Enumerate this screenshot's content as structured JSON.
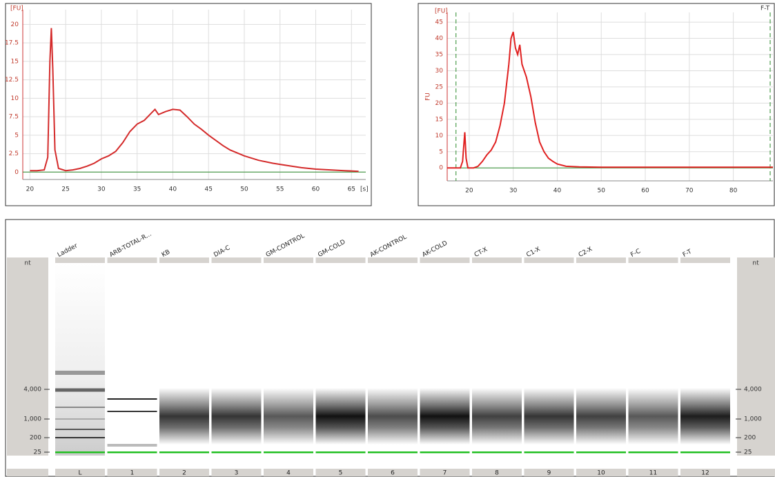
{
  "chart_data": [
    {
      "type": "line",
      "y_unit": "[FU]",
      "x_unit": "[s]",
      "color": "#d42a2a",
      "x": [
        20,
        21,
        22,
        22.5,
        22.8,
        23,
        23.2,
        23.5,
        24,
        25,
        26,
        27,
        28,
        29,
        30,
        31,
        32,
        33,
        34,
        35,
        36,
        37,
        37.5,
        38,
        39,
        40,
        41,
        42,
        43,
        44,
        45,
        46,
        47,
        48,
        50,
        52,
        54,
        56,
        58,
        60,
        62,
        64,
        66
      ],
      "values": [
        0.2,
        0.2,
        0.3,
        2,
        15,
        19.5,
        14,
        3,
        0.5,
        0.2,
        0.3,
        0.5,
        0.8,
        1.2,
        1.8,
        2.2,
        2.8,
        4,
        5.5,
        6.5,
        7,
        8,
        8.5,
        7.8,
        8.2,
        8.5,
        8.4,
        7.5,
        6.5,
        5.8,
        5,
        4.3,
        3.6,
        3,
        2.2,
        1.6,
        1.2,
        0.9,
        0.6,
        0.4,
        0.3,
        0.2,
        0.1
      ],
      "xlim": [
        19,
        67
      ],
      "ylim": [
        -1,
        22
      ],
      "xticks": [
        20,
        25,
        30,
        35,
        40,
        45,
        50,
        55,
        60,
        65
      ],
      "yticks": [
        0,
        2.5,
        5,
        7.5,
        10,
        12.5,
        15,
        17.5,
        20
      ],
      "grid": true
    },
    {
      "type": "line",
      "title": "F-T",
      "y_unit": "[FU]",
      "y_label": "FU",
      "color": "#e02020",
      "x": [
        15,
        18,
        18.5,
        19,
        19.3,
        19.7,
        20,
        21,
        22,
        23,
        24,
        25,
        26,
        27,
        28,
        29,
        29.5,
        30,
        30.5,
        31,
        31.5,
        32,
        33,
        34,
        35,
        36,
        37,
        38,
        39,
        40,
        42,
        45,
        50,
        60,
        70,
        80,
        89
      ],
      "values": [
        0,
        0,
        2,
        11,
        3,
        0,
        0,
        0,
        0.5,
        2,
        4,
        5.5,
        8,
        13,
        20,
        32,
        40,
        42,
        37,
        35,
        38,
        32,
        28,
        22,
        14,
        8,
        5,
        3,
        2,
        1.2,
        0.5,
        0.3,
        0.2,
        0.2,
        0.2,
        0.2,
        0.2
      ],
      "xlim": [
        15,
        89
      ],
      "ylim": [
        -4,
        48
      ],
      "xticks": [
        20,
        30,
        40,
        50,
        60,
        70,
        80
      ],
      "yticks": [
        0,
        5,
        10,
        15,
        20,
        25,
        30,
        35,
        40,
        45
      ],
      "grid": true
    },
    {
      "type": "gel",
      "unit": "nt",
      "lanes": [
        "Ladder",
        "ARB-TOTAL-R...",
        "KB",
        "DIA-C",
        "GM-CONTROL",
        "GM-COLD",
        "AK-CONTROL",
        "AK-COLD",
        "CT-X",
        "C1-X",
        "C2-X",
        "F-C",
        "F-T"
      ],
      "lane_ids": [
        "L",
        "1",
        "2",
        "3",
        "4",
        "5",
        "6",
        "7",
        "8",
        "9",
        "10",
        "11",
        "12"
      ],
      "yticks": [
        {
          "value": 4000,
          "label": "4,000"
        },
        {
          "value": 1000,
          "label": "1,000"
        },
        {
          "value": 200,
          "label": "200"
        },
        {
          "value": 25,
          "label": "25"
        }
      ]
    }
  ]
}
